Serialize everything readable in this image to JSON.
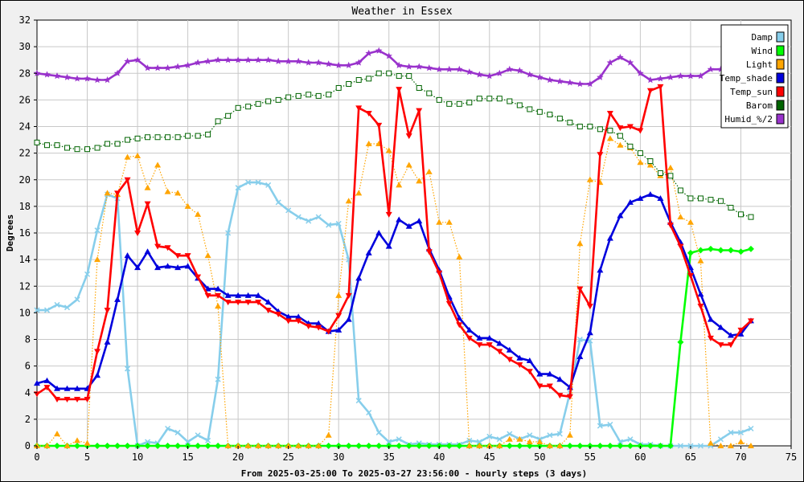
{
  "chart_data": {
    "type": "line",
    "title": "Weather in Essex",
    "xlabel": "From 2025-03-25:00 To 2025-03-27 23:56:00 - hourly steps (3 days)",
    "ylabel": "Degrees",
    "xlim": [
      0,
      75
    ],
    "ylim": [
      0,
      32
    ],
    "xticks": [
      0,
      5,
      10,
      15,
      20,
      25,
      30,
      35,
      40,
      45,
      50,
      55,
      60,
      65,
      70,
      75
    ],
    "yticks": [
      0,
      2,
      4,
      6,
      8,
      10,
      12,
      14,
      16,
      18,
      20,
      22,
      24,
      26,
      28,
      30,
      32
    ],
    "grid": true,
    "legend_position": "top-right",
    "series": [
      {
        "name": "Damp",
        "color": "#87ceeb",
        "marker": "x",
        "style": "solid",
        "values": [
          10.2,
          10.2,
          10.6,
          10.4,
          11.0,
          12.9,
          16.2,
          18.9,
          18.6,
          5.8,
          0.0,
          0.3,
          0.2,
          1.3,
          1.0,
          0.3,
          0.8,
          0.4,
          5.0,
          16.0,
          19.4,
          19.8,
          19.8,
          19.6,
          18.3,
          17.7,
          17.2,
          16.9,
          17.2,
          16.6,
          16.7,
          14.0,
          3.4,
          2.5,
          1.0,
          0.3,
          0.5,
          0.1,
          0.2,
          0.1,
          0.1,
          0.1,
          0.1,
          0.4,
          0.3,
          0.7,
          0.5,
          0.9,
          0.5,
          0.8,
          0.5,
          0.8,
          0.9,
          4.0,
          8.0,
          7.9,
          1.5,
          1.6,
          0.3,
          0.5,
          0.1,
          0.1,
          0.0,
          0.0,
          0.0,
          0.0,
          0.0,
          0.0,
          0.5,
          1.0,
          1.0,
          1.3
        ]
      },
      {
        "name": "Wind",
        "color": "#00ff00",
        "marker": "diamond",
        "style": "solid",
        "values": [
          0,
          0,
          0,
          0,
          0,
          0,
          0,
          0,
          0,
          0,
          0,
          0,
          0,
          0,
          0,
          0,
          0,
          0,
          0,
          0,
          0,
          0,
          0,
          0,
          0,
          0,
          0,
          0,
          0,
          0,
          0,
          0,
          0,
          0,
          0,
          0,
          0,
          0,
          0,
          0,
          0,
          0,
          0,
          0,
          0,
          0,
          0,
          0,
          0,
          0,
          0,
          0,
          0,
          0,
          0,
          0,
          0,
          0,
          0,
          0,
          0,
          0,
          0,
          0,
          7.8,
          14.5,
          14.7,
          14.8,
          14.7,
          14.7,
          14.6,
          14.8
        ]
      },
      {
        "name": "Light",
        "color": "#ffa500",
        "marker": "triangle-up",
        "style": "dotted",
        "values": [
          0,
          0,
          0.9,
          0,
          0.4,
          0.2,
          14.0,
          19.0,
          18.9,
          21.7,
          21.8,
          19.4,
          21.1,
          19.1,
          19.0,
          18.0,
          17.4,
          14.3,
          10.5,
          0,
          0,
          0,
          0,
          0,
          0,
          0,
          0,
          0,
          0,
          0.8,
          11.3,
          18.4,
          19.0,
          22.7,
          22.7,
          22.2,
          19.6,
          21.1,
          19.9,
          20.6,
          16.8,
          16.8,
          14.2,
          0,
          0,
          0,
          0,
          0.5,
          0.5,
          0.3,
          0.3,
          0,
          0,
          0.8,
          15.2,
          20.0,
          19.8,
          23.1,
          22.6,
          22.4,
          21.3,
          21.1,
          20.3,
          20.9,
          17.2,
          16.8,
          13.9,
          0.2,
          0,
          0,
          0.3,
          0
        ]
      },
      {
        "name": "Temp_shade",
        "color": "#0000dd",
        "marker": "triangle-up",
        "style": "solid",
        "values": [
          4.7,
          4.9,
          4.3,
          4.3,
          4.3,
          4.3,
          5.3,
          7.8,
          11.0,
          14.3,
          13.4,
          14.6,
          13.4,
          13.5,
          13.4,
          13.5,
          12.6,
          11.8,
          11.8,
          11.3,
          11.3,
          11.3,
          11.3,
          10.8,
          10.1,
          9.7,
          9.7,
          9.2,
          9.2,
          8.6,
          8.7,
          9.5,
          12.6,
          14.5,
          16.0,
          15.0,
          17.0,
          16.5,
          16.9,
          14.8,
          13.2,
          11.2,
          9.6,
          8.7,
          8.1,
          8.1,
          7.7,
          7.2,
          6.6,
          6.4,
          5.4,
          5.4,
          5.0,
          4.4,
          6.7,
          8.5,
          13.2,
          15.6,
          17.3,
          18.3,
          18.6,
          18.9,
          18.6,
          16.8,
          15.3,
          13.4,
          11.4,
          9.5,
          8.9,
          8.3,
          8.4,
          9.4
        ]
      },
      {
        "name": "Temp_sun",
        "color": "#ff0000",
        "marker": "triangle-down",
        "style": "solid",
        "values": [
          3.9,
          4.4,
          3.5,
          3.5,
          3.5,
          3.5,
          7.1,
          10.2,
          19.0,
          20.0,
          16.0,
          18.2,
          15.0,
          14.9,
          14.3,
          14.3,
          12.7,
          11.3,
          11.3,
          10.8,
          10.8,
          10.8,
          10.8,
          10.2,
          9.9,
          9.4,
          9.4,
          9.0,
          8.9,
          8.6,
          9.8,
          11.3,
          25.4,
          25.0,
          24.1,
          17.4,
          26.8,
          23.3,
          25.2,
          14.6,
          13.0,
          10.7,
          9.1,
          8.1,
          7.6,
          7.6,
          7.1,
          6.5,
          6.1,
          5.6,
          4.5,
          4.5,
          3.8,
          3.7,
          11.8,
          10.5,
          21.9,
          25.0,
          23.9,
          24.0,
          23.7,
          26.7,
          27.0,
          16.6,
          15.0,
          12.8,
          10.5,
          8.1,
          7.6,
          7.6,
          8.7,
          9.4
        ]
      },
      {
        "name": "Barom",
        "color": "#006400",
        "marker": "open-square",
        "style": "dotted",
        "values": [
          22.8,
          22.6,
          22.6,
          22.4,
          22.3,
          22.3,
          22.4,
          22.7,
          22.7,
          23.0,
          23.1,
          23.2,
          23.2,
          23.2,
          23.2,
          23.3,
          23.3,
          23.4,
          24.4,
          24.8,
          25.4,
          25.5,
          25.7,
          25.9,
          26.0,
          26.2,
          26.3,
          26.4,
          26.3,
          26.4,
          26.9,
          27.2,
          27.5,
          27.6,
          28.0,
          28.0,
          27.8,
          27.8,
          26.9,
          26.5,
          26.0,
          25.7,
          25.7,
          25.8,
          26.1,
          26.1,
          26.1,
          25.9,
          25.6,
          25.3,
          25.1,
          24.9,
          24.6,
          24.3,
          24.0,
          24.0,
          23.8,
          23.7,
          23.3,
          22.5,
          22.0,
          21.4,
          20.5,
          20.3,
          19.2,
          18.6,
          18.6,
          18.5,
          18.4,
          17.9,
          17.4,
          17.2
        ]
      },
      {
        "name": "Humid_%/2",
        "color": "#9932cc",
        "marker": "star",
        "style": "solid",
        "values": [
          28.0,
          27.9,
          27.8,
          27.7,
          27.6,
          27.6,
          27.5,
          27.5,
          28.0,
          28.9,
          29.0,
          28.4,
          28.4,
          28.4,
          28.5,
          28.6,
          28.8,
          28.9,
          29.0,
          29.0,
          29.0,
          29.0,
          29.0,
          29.0,
          28.9,
          28.9,
          28.9,
          28.8,
          28.8,
          28.7,
          28.6,
          28.6,
          28.8,
          29.5,
          29.7,
          29.3,
          28.6,
          28.5,
          28.5,
          28.4,
          28.3,
          28.3,
          28.3,
          28.1,
          27.9,
          27.8,
          28.0,
          28.3,
          28.2,
          27.9,
          27.7,
          27.5,
          27.4,
          27.3,
          27.2,
          27.2,
          27.7,
          28.8,
          29.2,
          28.8,
          28.0,
          27.5,
          27.6,
          27.7,
          27.8,
          27.8,
          27.8,
          28.3,
          28.3,
          28.1,
          28.1,
          28.2
        ]
      }
    ]
  }
}
